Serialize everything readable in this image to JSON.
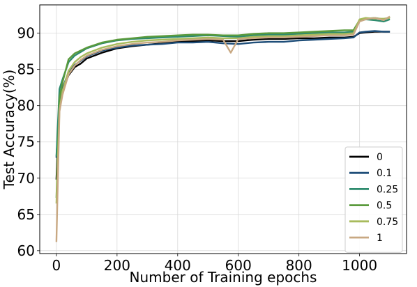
{
  "chart_data": {
    "type": "line",
    "title": "",
    "xlabel": "Number of Training epochs",
    "ylabel": "Test Accuracy(%)",
    "xlim": [
      -55,
      1155
    ],
    "ylim": [
      59.6,
      93.9
    ],
    "xticks": [
      0,
      200,
      400,
      600,
      800,
      1000
    ],
    "yticks": [
      60,
      65,
      70,
      75,
      80,
      85,
      90
    ],
    "grid": true,
    "legend_position": "bottom-right",
    "series": [
      {
        "name": "0",
        "color": "#000000",
        "x": [
          0,
          10,
          20,
          40,
          60,
          80,
          100,
          150,
          200,
          250,
          300,
          350,
          400,
          450,
          500,
          550,
          600,
          650,
          700,
          750,
          800,
          850,
          900,
          950,
          980,
          1000,
          1020,
          1050,
          1080,
          1100
        ],
        "y": [
          69.8,
          80.0,
          82.0,
          84.2,
          85.3,
          85.8,
          86.5,
          87.3,
          87.9,
          88.2,
          88.4,
          88.6,
          88.8,
          88.9,
          89.0,
          88.9,
          88.9,
          89.1,
          89.2,
          89.2,
          89.3,
          89.3,
          89.4,
          89.4,
          89.5,
          90.0,
          90.1,
          90.2,
          90.2,
          90.2
        ]
      },
      {
        "name": "0.1",
        "color": "#1f4e79",
        "x": [
          0,
          10,
          20,
          40,
          60,
          80,
          100,
          150,
          200,
          250,
          300,
          350,
          400,
          450,
          500,
          550,
          600,
          650,
          700,
          750,
          800,
          850,
          900,
          950,
          980,
          1000,
          1020,
          1050,
          1080,
          1100
        ],
        "y": [
          72.8,
          80.5,
          82.4,
          84.6,
          85.6,
          86.2,
          86.8,
          87.6,
          88.0,
          88.3,
          88.4,
          88.5,
          88.7,
          88.7,
          88.8,
          88.6,
          88.5,
          88.7,
          88.8,
          88.8,
          89.0,
          89.1,
          89.2,
          89.3,
          89.4,
          90.1,
          90.2,
          90.3,
          90.2,
          90.2
        ]
      },
      {
        "name": "0.25",
        "color": "#2e8b6e",
        "x": [
          0,
          10,
          20,
          40,
          60,
          80,
          100,
          150,
          200,
          250,
          300,
          350,
          400,
          450,
          500,
          550,
          600,
          650,
          700,
          750,
          800,
          850,
          900,
          950,
          980,
          1000,
          1020,
          1050,
          1080,
          1100
        ],
        "y": [
          73.0,
          82.3,
          83.6,
          86.0,
          86.9,
          87.4,
          87.9,
          88.6,
          89.0,
          89.2,
          89.3,
          89.4,
          89.5,
          89.6,
          89.7,
          89.6,
          89.5,
          89.7,
          89.8,
          89.8,
          89.9,
          90.0,
          90.1,
          90.1,
          90.2,
          91.7,
          91.9,
          91.8,
          91.6,
          91.9
        ]
      },
      {
        "name": "0.5",
        "color": "#5a9a3c",
        "x": [
          0,
          10,
          20,
          40,
          60,
          80,
          100,
          150,
          200,
          250,
          300,
          350,
          400,
          450,
          500,
          550,
          600,
          650,
          700,
          750,
          800,
          850,
          900,
          950,
          980,
          1000,
          1020,
          1050,
          1080,
          1100
        ],
        "y": [
          67.3,
          81.0,
          83.2,
          86.4,
          87.2,
          87.6,
          88.0,
          88.7,
          89.1,
          89.3,
          89.5,
          89.6,
          89.7,
          89.8,
          89.8,
          89.7,
          89.7,
          89.9,
          90.0,
          90.0,
          90.1,
          90.2,
          90.3,
          90.4,
          90.4,
          91.8,
          92.0,
          92.1,
          91.9,
          92.2
        ]
      },
      {
        "name": "0.75",
        "color": "#a8bb5c",
        "x": [
          0,
          10,
          20,
          40,
          60,
          80,
          100,
          150,
          200,
          250,
          300,
          350,
          400,
          450,
          500,
          550,
          600,
          650,
          700,
          750,
          800,
          850,
          900,
          950,
          980,
          1000,
          1020,
          1050,
          1080,
          1100
        ],
        "y": [
          66.5,
          79.5,
          82.0,
          84.8,
          86.0,
          86.7,
          87.2,
          88.0,
          88.5,
          88.8,
          89.0,
          89.1,
          89.2,
          89.3,
          89.4,
          89.3,
          89.3,
          89.5,
          89.6,
          89.6,
          89.7,
          89.8,
          89.9,
          89.9,
          90.0,
          91.9,
          92.1,
          92.0,
          92.0,
          92.1
        ]
      },
      {
        "name": "1",
        "color": "#c8a882",
        "x": [
          0,
          10,
          20,
          40,
          60,
          80,
          100,
          150,
          200,
          250,
          300,
          350,
          400,
          450,
          500,
          550,
          575,
          600,
          650,
          700,
          750,
          800,
          850,
          900,
          950,
          980,
          1000,
          1020,
          1050,
          1080,
          1100
        ],
        "y": [
          61.2,
          79.2,
          81.5,
          84.3,
          85.5,
          86.3,
          86.9,
          87.7,
          88.2,
          88.5,
          88.7,
          88.8,
          89.0,
          89.1,
          89.2,
          89.1,
          87.3,
          89.2,
          89.3,
          89.4,
          89.4,
          89.5,
          89.6,
          89.7,
          89.7,
          89.8,
          91.6,
          91.9,
          92.1,
          91.8,
          92.3
        ]
      }
    ]
  }
}
